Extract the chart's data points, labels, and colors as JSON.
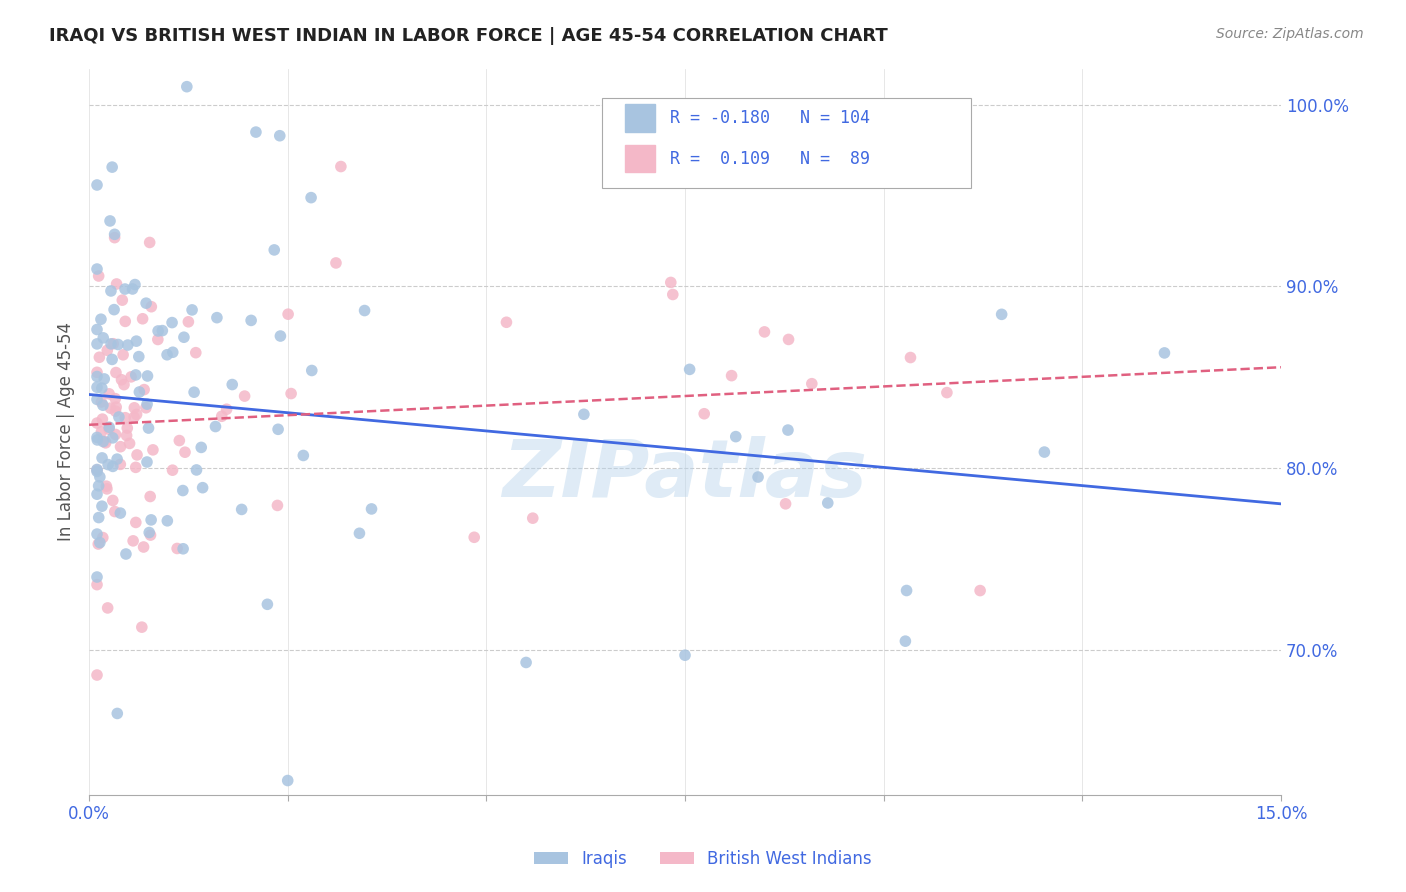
{
  "title": "IRAQI VS BRITISH WEST INDIAN IN LABOR FORCE | AGE 45-54 CORRELATION CHART",
  "source": "Source: ZipAtlas.com",
  "ylabel": "In Labor Force | Age 45-54",
  "xlim": [
    0.0,
    0.15
  ],
  "ylim": [
    0.62,
    1.02
  ],
  "xtick_positions": [
    0.0,
    0.025,
    0.05,
    0.075,
    0.1,
    0.125,
    0.15
  ],
  "xtick_labels": [
    "0.0%",
    "",
    "",
    "",
    "",
    "",
    "15.0%"
  ],
  "yticks_right": [
    1.0,
    0.9,
    0.8,
    0.7
  ],
  "ytick_labels_right": [
    "100.0%",
    "90.0%",
    "80.0%",
    "70.0%"
  ],
  "iraqi_color": "#a8c4e0",
  "bwi_color": "#f4b8c8",
  "iraqi_line_color": "#4169e1",
  "bwi_line_color": "#e06080",
  "iraqi_R": -0.18,
  "iraqi_N": 104,
  "bwi_R": 0.109,
  "bwi_N": 89,
  "watermark": "ZIPatlas",
  "legend_iraqi_label": "Iraqis",
  "legend_bwi_label": "British West Indians",
  "seed_iraqi": 42,
  "seed_bwi": 123
}
